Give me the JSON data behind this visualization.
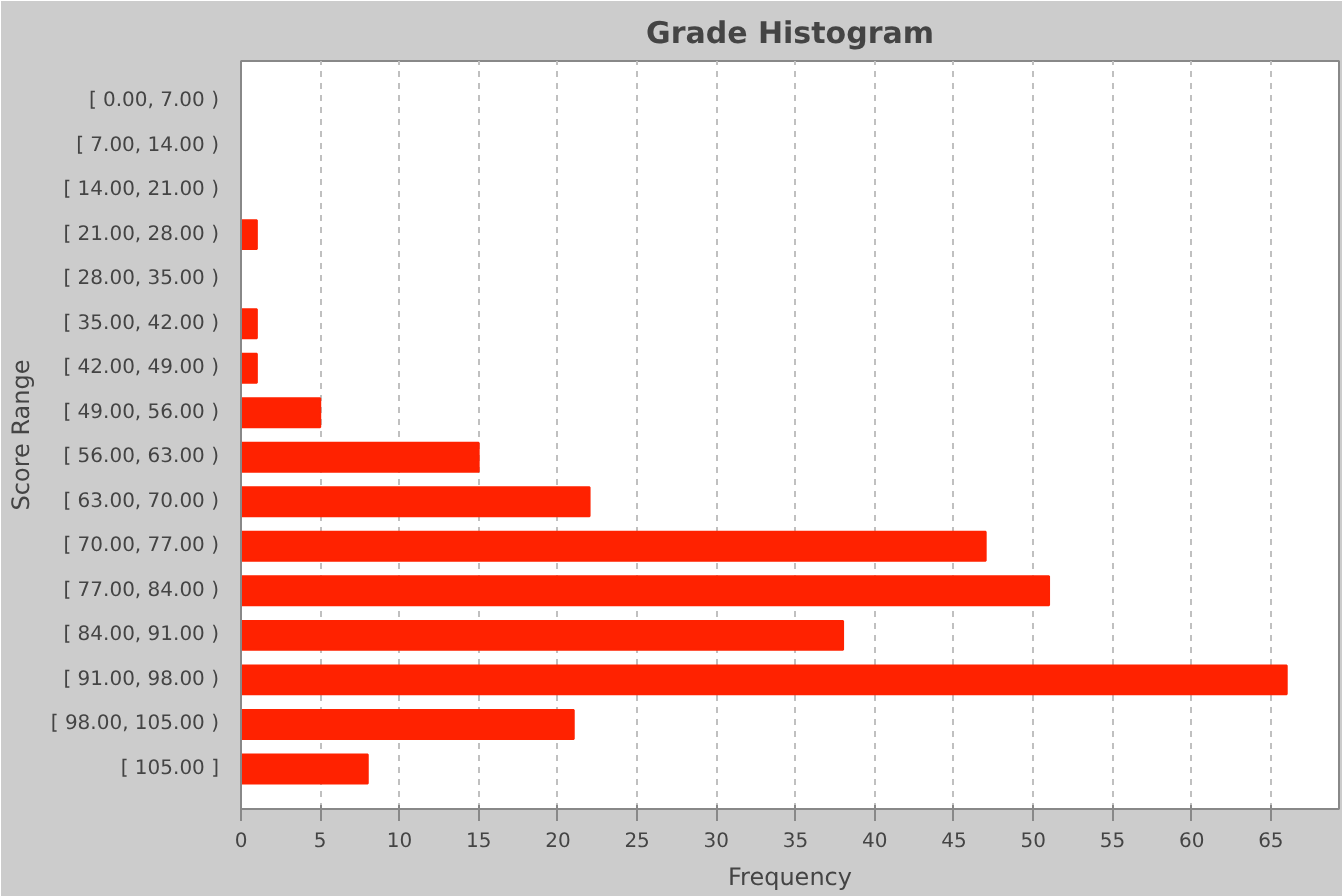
{
  "chart_data": {
    "type": "bar",
    "orientation": "horizontal",
    "title": "Grade Histogram",
    "xlabel": "Frequency",
    "ylabel": "Score Range",
    "categories": [
      "[ 0.00, 7.00 )",
      "[ 7.00, 14.00 )",
      "[ 14.00, 21.00 )",
      "[ 21.00, 28.00 )",
      "[ 28.00, 35.00 )",
      "[ 35.00, 42.00 )",
      "[ 42.00, 49.00 )",
      "[ 49.00, 56.00 )",
      "[ 56.00, 63.00 )",
      "[ 63.00, 70.00 )",
      "[ 70.00, 77.00 )",
      "[ 77.00, 84.00 )",
      "[ 84.00, 91.00 )",
      "[ 91.00, 98.00 )",
      "[ 98.00, 105.00 )",
      "[ 105.00 ]"
    ],
    "values": [
      0,
      0,
      0,
      1,
      0,
      1,
      1,
      5,
      15,
      22,
      47,
      51,
      38,
      66,
      21,
      8
    ],
    "color": "#ff2200",
    "xlim": [
      0,
      69.3
    ],
    "xticks": [
      0,
      5,
      10,
      15,
      20,
      25,
      30,
      35,
      40,
      45,
      50,
      55,
      60,
      65
    ],
    "grid": "x"
  }
}
